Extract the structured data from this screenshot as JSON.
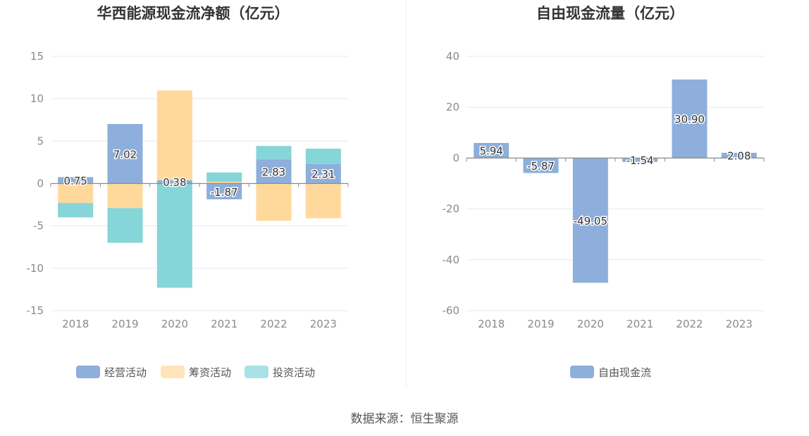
{
  "chart_data": [
    {
      "type": "bar",
      "stacked": true,
      "title": "华西能源现金流净额（亿元）",
      "categories": [
        "2018",
        "2019",
        "2020",
        "2021",
        "2022",
        "2023"
      ],
      "ylim": [
        -15,
        15
      ],
      "yticks": [
        15,
        10,
        5,
        0,
        -5,
        -10,
        -15
      ],
      "series": [
        {
          "name": "经营活动",
          "color": "#8eaedb",
          "values": [
            0.75,
            7.02,
            0.38,
            -1.87,
            2.83,
            2.31
          ]
        },
        {
          "name": "筹资活动",
          "color": "#ffd99b",
          "values": [
            -2.3,
            -2.9,
            10.6,
            0.2,
            -4.4,
            -4.1
          ]
        },
        {
          "name": "投资活动",
          "color": "#85d5d9",
          "values": [
            -1.7,
            -4.1,
            -12.3,
            1.1,
            1.6,
            1.8
          ]
        }
      ],
      "data_labels": [
        "0.75",
        "7.02",
        "0.38",
        "-1.87",
        "2.83",
        "2.31"
      ],
      "legend_position": "bottom"
    },
    {
      "type": "bar",
      "title": "自由现金流量（亿元）",
      "categories": [
        "2018",
        "2019",
        "2020",
        "2021",
        "2022",
        "2023"
      ],
      "ylim": [
        -60,
        40
      ],
      "yticks": [
        40,
        20,
        0,
        -20,
        -40,
        -60
      ],
      "series": [
        {
          "name": "自由现金流",
          "color": "#8eaedb",
          "values": [
            5.94,
            -5.87,
            -49.05,
            -1.54,
            30.9,
            2.08
          ]
        }
      ],
      "data_labels": [
        "5.94",
        "-5.87",
        "-49.05",
        "-1.54",
        "30.90",
        "2.08"
      ],
      "legend_position": "bottom"
    }
  ],
  "footer": {
    "source": "数据来源：恒生聚源"
  }
}
